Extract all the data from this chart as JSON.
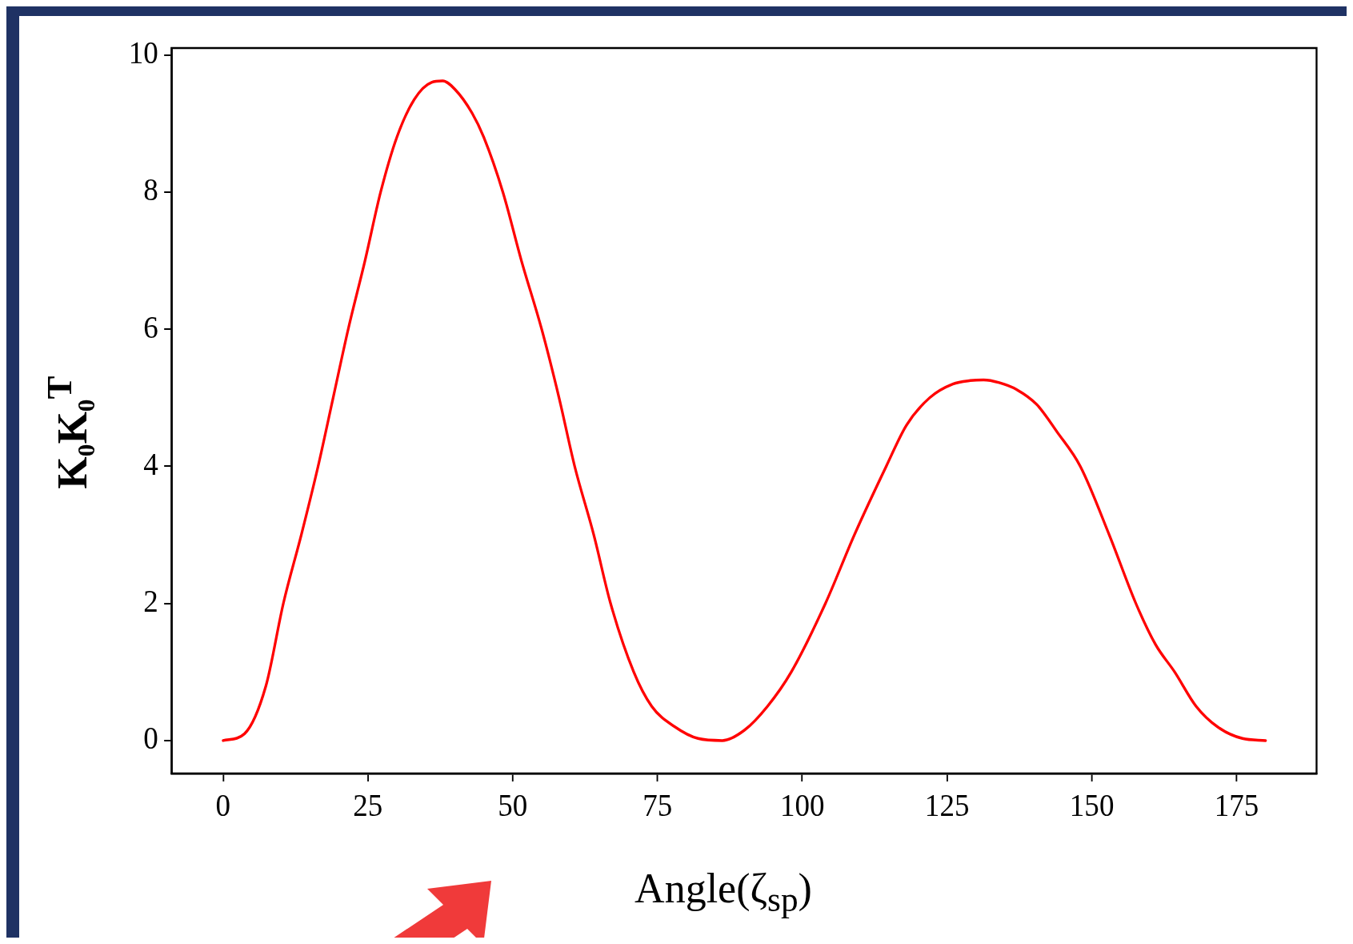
{
  "chart_data": {
    "type": "line",
    "xlabel": "Angle(ζ$_{sp}$)",
    "ylabel": "K₀K₀$^{T}$",
    "series": [
      {
        "color": "#ff0000",
        "x": [
          0,
          3.7,
          7.4,
          10.4,
          13.5,
          16.4,
          19,
          21.6,
          24.5,
          27.2,
          30,
          33,
          36,
          37.9,
          40,
          43,
          45,
          48.3,
          51.5,
          55,
          58,
          60.7,
          64,
          66.9,
          70.9,
          74,
          78,
          82,
          86.2,
          90,
          94,
          98.1,
          104,
          109,
          114.5,
          118,
          122,
          126,
          129,
          131.3,
          134,
          137,
          140.5,
          144,
          148,
          153,
          157.6,
          161,
          164.3,
          168,
          171.7,
          176,
          180
        ],
        "values": [
          0,
          0.1,
          0.8,
          2,
          3,
          4,
          5,
          6,
          7,
          8,
          8.8,
          9.35,
          9.6,
          9.62,
          9.5,
          9.15,
          8.8,
          8,
          7,
          6,
          5,
          4,
          3,
          2,
          1,
          0.5,
          0.2,
          0.03,
          0,
          0.15,
          0.5,
          1,
          2,
          3,
          4,
          4.6,
          5,
          5.2,
          5.25,
          5.26,
          5.22,
          5.12,
          4.9,
          4.5,
          4,
          3,
          2,
          1.4,
          1,
          0.5,
          0.2,
          0.03,
          0
        ]
      }
    ],
    "xlim": [
      -8.9,
      188.8
    ],
    "ylim": [
      -0.48,
      10.1
    ],
    "xticks": [
      0,
      25,
      50,
      75,
      100,
      125,
      150,
      175
    ],
    "yticks": [
      0,
      2,
      4,
      6,
      8,
      10
    ],
    "grid": false,
    "legend": false,
    "marker": "none",
    "line_style": "solid"
  }
}
